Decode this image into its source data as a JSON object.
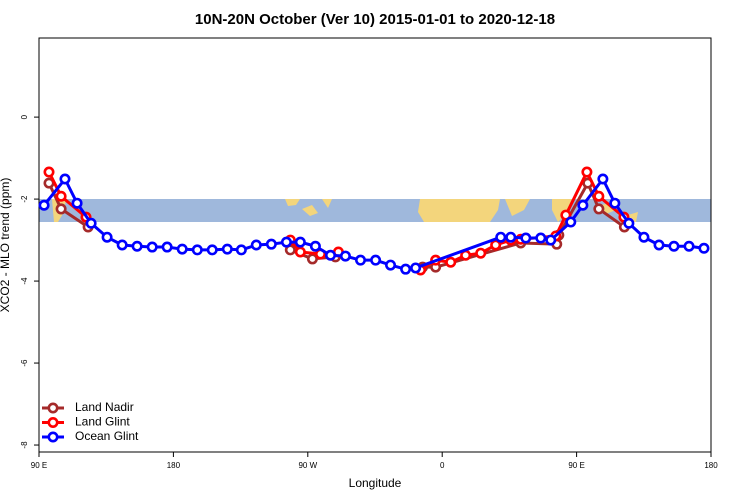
{
  "chart_data": {
    "type": "line",
    "title": "10N-20N October (Ver 10)   2015-01-01 to 2020-12-18",
    "x_label": "Longitude",
    "y_label": "XCO2 - MLO trend (ppm)",
    "xlim": [
      90,
      540
    ],
    "xticks": [
      {
        "value": 90,
        "label": "90 E"
      },
      {
        "value": 180,
        "label": "180"
      },
      {
        "value": 270,
        "label": "90 W"
      },
      {
        "value": 360,
        "label": "0"
      },
      {
        "value": 450,
        "label": "90 E"
      },
      {
        "value": 540,
        "label": "180"
      }
    ],
    "ylim": [
      -8.17,
      1.93
    ],
    "yticks": [
      0,
      -2,
      -4,
      -6,
      -8
    ],
    "legend": "bottom-left",
    "series": [
      {
        "name": "Land Nadir",
        "color": "#a52a2a",
        "x": [
          96.7,
          104.8,
          122.9,
          null,
          258.3,
          273.1,
          288.5,
          null,
          346.9,
          355.6,
          412.6,
          436.7,
          438.1,
          457.5,
          464.9,
          482.0
        ],
        "values": [
          -1.61,
          -2.24,
          -2.68,
          null,
          -3.24,
          -3.46,
          -3.41,
          null,
          -3.66,
          -3.66,
          -3.07,
          -3.1,
          -2.88,
          -1.61,
          -2.24,
          -2.68
        ]
      },
      {
        "name": "Land Glint",
        "color": "#ff0000",
        "x": [
          96.7,
          104.8,
          121.5,
          null,
          258.3,
          265.0,
          278.5,
          290.5,
          null,
          345.5,
          355.6,
          365.7,
          375.7,
          385.8,
          395.8,
          405.9,
          412.6,
          436.1,
          442.8,
          456.9,
          464.9,
          481.7
        ],
        "values": [
          -1.34,
          -1.93,
          -2.44,
          null,
          -3.0,
          -3.29,
          -3.34,
          -3.29,
          null,
          -3.73,
          -3.49,
          -3.54,
          -3.37,
          -3.32,
          -3.12,
          -3.0,
          -2.98,
          -2.9,
          -2.39,
          -1.34,
          -1.93,
          -2.44
        ]
      },
      {
        "name": "Ocean Glint",
        "color": "#0000ff",
        "x": [
          93.4,
          107.4,
          115.5,
          124.9,
          135.6,
          145.7,
          155.7,
          165.8,
          175.8,
          185.9,
          196.0,
          206.0,
          216.1,
          225.5,
          235.5,
          245.6,
          255.7,
          265.0,
          275.1,
          285.2,
          295.2,
          305.3,
          315.4,
          325.4,
          335.5,
          342.2,
          399.2,
          405.9,
          416.0,
          426.0,
          432.7,
          446.1,
          454.2,
          467.6,
          475.6,
          485.0,
          495.1,
          505.2,
          515.2,
          525.3,
          535.3
        ],
        "values": [
          -2.15,
          -1.51,
          -2.1,
          -2.59,
          -2.93,
          -3.12,
          -3.15,
          -3.17,
          -3.17,
          -3.22,
          -3.24,
          -3.24,
          -3.22,
          -3.24,
          -3.12,
          -3.1,
          -3.05,
          -3.05,
          -3.15,
          -3.37,
          -3.39,
          -3.49,
          -3.49,
          -3.61,
          -3.71,
          -3.68,
          -2.93,
          -2.93,
          -2.95,
          -2.95,
          -3.0,
          -2.56,
          -2.15,
          -1.51,
          -2.1,
          -2.59,
          -2.93,
          -3.12,
          -3.15,
          -3.15,
          -3.2
        ]
      }
    ]
  }
}
